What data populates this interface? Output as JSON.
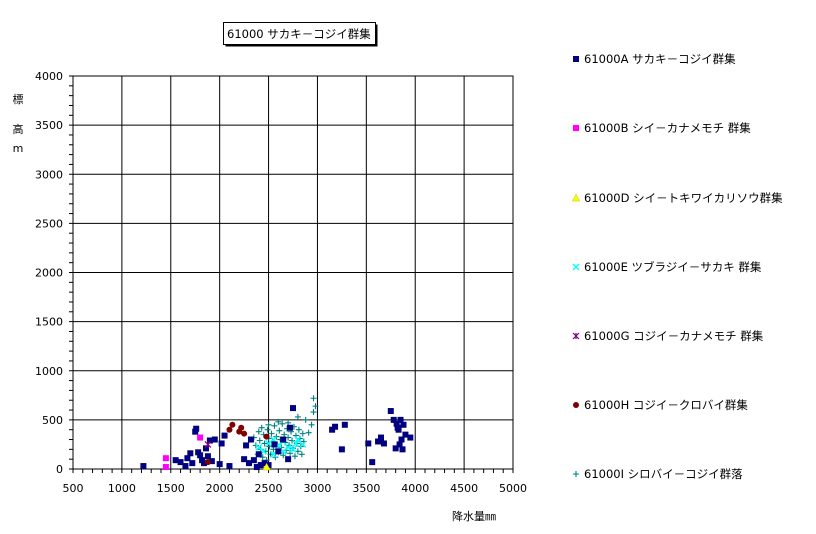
{
  "chart_data": {
    "type": "scatter",
    "title": "61000 サカキ－コジイ群集",
    "xlabel": "降水量㎜",
    "ylabel": "標高m",
    "xlim": [
      500,
      5000
    ],
    "ylim": [
      0,
      4000
    ],
    "xticks": [
      500,
      1000,
      1500,
      2000,
      2500,
      3000,
      3500,
      4000,
      4500,
      5000
    ],
    "yticks": [
      0,
      500,
      1000,
      1500,
      2000,
      2500,
      3000,
      3500,
      4000
    ],
    "grid": true,
    "legend_position": "right",
    "series": [
      {
        "name": "61000A サカキ－コジイ群集",
        "marker": "square",
        "color": "#000080",
        "points": [
          [
            1220,
            30
          ],
          [
            1550,
            90
          ],
          [
            1600,
            70
          ],
          [
            1650,
            30
          ],
          [
            1670,
            110
          ],
          [
            1700,
            160
          ],
          [
            1720,
            60
          ],
          [
            1750,
            380
          ],
          [
            1760,
            410
          ],
          [
            1780,
            170
          ],
          [
            1800,
            140
          ],
          [
            1820,
            90
          ],
          [
            1840,
            60
          ],
          [
            1860,
            210
          ],
          [
            1880,
            130
          ],
          [
            1900,
            290
          ],
          [
            1920,
            80
          ],
          [
            1950,
            300
          ],
          [
            2000,
            50
          ],
          [
            2020,
            260
          ],
          [
            2050,
            340
          ],
          [
            2100,
            30
          ],
          [
            2250,
            100
          ],
          [
            2270,
            240
          ],
          [
            2300,
            60
          ],
          [
            2320,
            300
          ],
          [
            2350,
            90
          ],
          [
            2380,
            20
          ],
          [
            2400,
            150
          ],
          [
            2420,
            40
          ],
          [
            2460,
            60
          ],
          [
            2500,
            40
          ],
          [
            2560,
            250
          ],
          [
            2600,
            180
          ],
          [
            2650,
            300
          ],
          [
            2700,
            100
          ],
          [
            2720,
            420
          ],
          [
            2750,
            620
          ],
          [
            3150,
            400
          ],
          [
            3180,
            430
          ],
          [
            3250,
            200
          ],
          [
            3280,
            450
          ],
          [
            3520,
            260
          ],
          [
            3560,
            70
          ],
          [
            3620,
            280
          ],
          [
            3650,
            320
          ],
          [
            3680,
            260
          ],
          [
            3750,
            590
          ],
          [
            3780,
            500
          ],
          [
            3800,
            210
          ],
          [
            3810,
            460
          ],
          [
            3820,
            420
          ],
          [
            3830,
            400
          ],
          [
            3840,
            250
          ],
          [
            3850,
            500
          ],
          [
            3860,
            300
          ],
          [
            3870,
            200
          ],
          [
            3880,
            450
          ],
          [
            3900,
            350
          ],
          [
            3950,
            320
          ]
        ]
      },
      {
        "name": "61000B シイ－カナメモチ 群集",
        "marker": "square",
        "color": "#ff00ff",
        "points": [
          [
            1450,
            110
          ],
          [
            1450,
            20
          ],
          [
            1800,
            320
          ]
        ]
      },
      {
        "name": "61000D シイ－トキワイカリソウ群集",
        "marker": "triangle",
        "color": "#ffff00",
        "points": [
          [
            2480,
            20
          ]
        ]
      },
      {
        "name": "61000E ツブラジイ－サカキ 群集",
        "marker": "x",
        "color": "#00ffff",
        "points": [
          [
            2400,
            220
          ],
          [
            2450,
            180
          ],
          [
            2500,
            260
          ],
          [
            2550,
            300
          ],
          [
            2600,
            240
          ],
          [
            2650,
            280
          ],
          [
            2700,
            220
          ],
          [
            2750,
            200
          ],
          [
            2800,
            300
          ],
          [
            2850,
            250
          ],
          [
            2550,
            150
          ],
          [
            2650,
            180
          ],
          [
            2780,
            260
          ]
        ]
      },
      {
        "name": "61000G コジイ－カナメモチ 群集",
        "marker": "star",
        "color": "#800080",
        "points": [
          [
            1880,
            250
          ]
        ]
      },
      {
        "name": "61000H コジイ－クロバイ群集",
        "marker": "circle",
        "color": "#800000",
        "points": [
          [
            1880,
            70
          ],
          [
            2100,
            400
          ],
          [
            2130,
            450
          ],
          [
            2200,
            380
          ],
          [
            2220,
            420
          ],
          [
            2250,
            360
          ],
          [
            2480,
            330
          ]
        ]
      },
      {
        "name": "61000I シロバイ－コジイ群落",
        "marker": "plus",
        "color": "#008080",
        "points": [
          [
            2350,
            320
          ],
          [
            2370,
            240
          ],
          [
            2390,
            150
          ],
          [
            2400,
            380
          ],
          [
            2410,
            290
          ],
          [
            2420,
            200
          ],
          [
            2430,
            420
          ],
          [
            2440,
            120
          ],
          [
            2450,
            350
          ],
          [
            2460,
            260
          ],
          [
            2470,
            180
          ],
          [
            2480,
            90
          ],
          [
            2490,
            400
          ],
          [
            2500,
            310
          ],
          [
            2510,
            230
          ],
          [
            2520,
            150
          ],
          [
            2530,
            360
          ],
          [
            2540,
            280
          ],
          [
            2550,
            200
          ],
          [
            2560,
            440
          ],
          [
            2570,
            120
          ],
          [
            2580,
            330
          ],
          [
            2590,
            250
          ],
          [
            2600,
            170
          ],
          [
            2610,
            390
          ],
          [
            2620,
            300
          ],
          [
            2630,
            220
          ],
          [
            2640,
            460
          ],
          [
            2650,
            140
          ],
          [
            2660,
            350
          ],
          [
            2670,
            270
          ],
          [
            2680,
            190
          ],
          [
            2690,
            410
          ],
          [
            2700,
            320
          ],
          [
            2710,
            240
          ],
          [
            2720,
            160
          ],
          [
            2730,
            380
          ],
          [
            2740,
            290
          ],
          [
            2750,
            210
          ],
          [
            2760,
            430
          ],
          [
            2770,
            130
          ],
          [
            2780,
            340
          ],
          [
            2790,
            260
          ],
          [
            2800,
            180
          ],
          [
            2810,
            400
          ],
          [
            2820,
            310
          ],
          [
            2830,
            230
          ],
          [
            2840,
            150
          ],
          [
            2850,
            360
          ],
          [
            2860,
            280
          ],
          [
            2880,
            500
          ],
          [
            2910,
            370
          ],
          [
            2940,
            450
          ],
          [
            2960,
            720
          ],
          [
            2960,
            580
          ],
          [
            2980,
            640
          ],
          [
            2800,
            530
          ],
          [
            2700,
            470
          ],
          [
            2600,
            480
          ],
          [
            2500,
            450
          ]
        ]
      }
    ]
  }
}
